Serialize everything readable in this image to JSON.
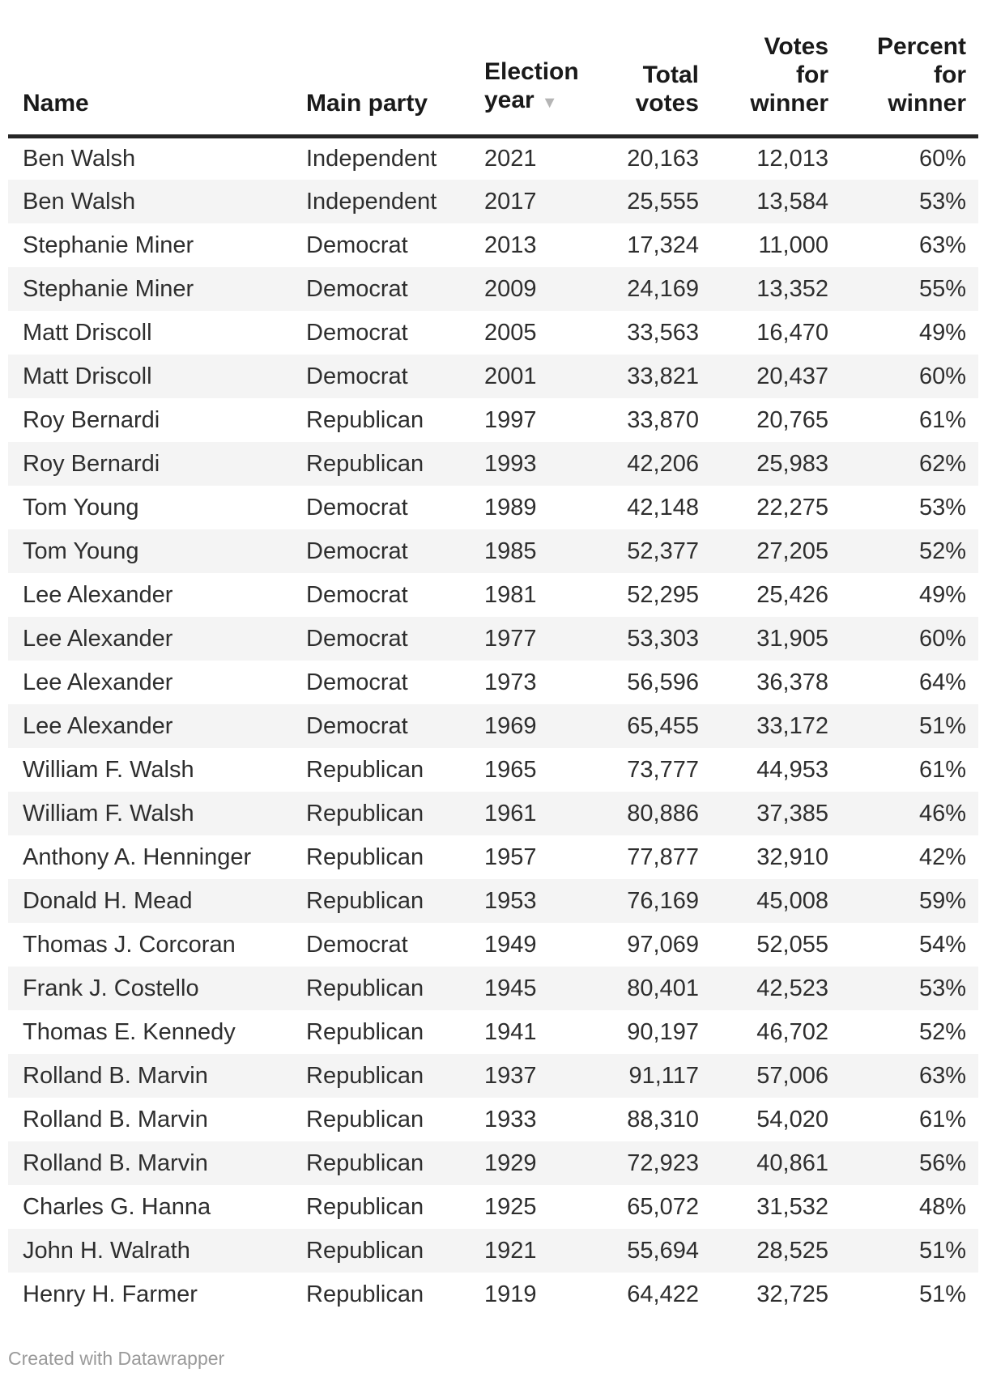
{
  "page": {
    "footer": "Created with Datawrapper"
  },
  "colors": {
    "header_text": "#1a1a1a",
    "body_text": "#2e2e2e",
    "header_rule": "#262626",
    "row_stripe": "#f4f4f4",
    "sort_arrow": "#b5b5b5",
    "footer_text": "#9a9a9a"
  },
  "chart_data": {
    "type": "table",
    "columns": [
      {
        "id": "name",
        "label": "Name",
        "align": "left",
        "sorted": false
      },
      {
        "id": "party",
        "label": "Main party",
        "align": "left",
        "sorted": false
      },
      {
        "id": "year",
        "label": "Election\nyear",
        "align": "left",
        "sorted": true,
        "sort_direction": "descending",
        "sort_icon": "▼"
      },
      {
        "id": "total_votes",
        "label": "Total\nvotes",
        "align": "right",
        "sorted": false
      },
      {
        "id": "votes_for_winner",
        "label": "Votes\nfor\nwinner",
        "align": "right",
        "sorted": false
      },
      {
        "id": "percent_for_winner",
        "label": "Percent\nfor\nwinner",
        "align": "right",
        "sorted": false
      }
    ],
    "rows": [
      {
        "name": "Ben Walsh",
        "party": "Independent",
        "year": "2021",
        "total_votes": "20,163",
        "votes_for_winner": "12,013",
        "percent_for_winner": "60%"
      },
      {
        "name": "Ben Walsh",
        "party": "Independent",
        "year": "2017",
        "total_votes": "25,555",
        "votes_for_winner": "13,584",
        "percent_for_winner": "53%"
      },
      {
        "name": "Stephanie Miner",
        "party": "Democrat",
        "year": "2013",
        "total_votes": "17,324",
        "votes_for_winner": "11,000",
        "percent_for_winner": "63%"
      },
      {
        "name": "Stephanie Miner",
        "party": "Democrat",
        "year": "2009",
        "total_votes": "24,169",
        "votes_for_winner": "13,352",
        "percent_for_winner": "55%"
      },
      {
        "name": "Matt Driscoll",
        "party": "Democrat",
        "year": "2005",
        "total_votes": "33,563",
        "votes_for_winner": "16,470",
        "percent_for_winner": "49%"
      },
      {
        "name": "Matt Driscoll",
        "party": "Democrat",
        "year": "2001",
        "total_votes": "33,821",
        "votes_for_winner": "20,437",
        "percent_for_winner": "60%"
      },
      {
        "name": "Roy Bernardi",
        "party": "Republican",
        "year": "1997",
        "total_votes": "33,870",
        "votes_for_winner": "20,765",
        "percent_for_winner": "61%"
      },
      {
        "name": "Roy Bernardi",
        "party": "Republican",
        "year": "1993",
        "total_votes": "42,206",
        "votes_for_winner": "25,983",
        "percent_for_winner": "62%"
      },
      {
        "name": "Tom Young",
        "party": "Democrat",
        "year": "1989",
        "total_votes": "42,148",
        "votes_for_winner": "22,275",
        "percent_for_winner": "53%"
      },
      {
        "name": "Tom Young",
        "party": "Democrat",
        "year": "1985",
        "total_votes": "52,377",
        "votes_for_winner": "27,205",
        "percent_for_winner": "52%"
      },
      {
        "name": "Lee Alexander",
        "party": "Democrat",
        "year": "1981",
        "total_votes": "52,295",
        "votes_for_winner": "25,426",
        "percent_for_winner": "49%"
      },
      {
        "name": "Lee Alexander",
        "party": "Democrat",
        "year": "1977",
        "total_votes": "53,303",
        "votes_for_winner": "31,905",
        "percent_for_winner": "60%"
      },
      {
        "name": "Lee Alexander",
        "party": "Democrat",
        "year": "1973",
        "total_votes": "56,596",
        "votes_for_winner": "36,378",
        "percent_for_winner": "64%"
      },
      {
        "name": "Lee Alexander",
        "party": "Democrat",
        "year": "1969",
        "total_votes": "65,455",
        "votes_for_winner": "33,172",
        "percent_for_winner": "51%"
      },
      {
        "name": "William F. Walsh",
        "party": "Republican",
        "year": "1965",
        "total_votes": "73,777",
        "votes_for_winner": "44,953",
        "percent_for_winner": "61%"
      },
      {
        "name": "William F. Walsh",
        "party": "Republican",
        "year": "1961",
        "total_votes": "80,886",
        "votes_for_winner": "37,385",
        "percent_for_winner": "46%"
      },
      {
        "name": "Anthony A. Henninger",
        "party": "Republican",
        "year": "1957",
        "total_votes": "77,877",
        "votes_for_winner": "32,910",
        "percent_for_winner": "42%"
      },
      {
        "name": "Donald H. Mead",
        "party": "Republican",
        "year": "1953",
        "total_votes": "76,169",
        "votes_for_winner": "45,008",
        "percent_for_winner": "59%"
      },
      {
        "name": "Thomas J. Corcoran",
        "party": "Democrat",
        "year": "1949",
        "total_votes": "97,069",
        "votes_for_winner": "52,055",
        "percent_for_winner": "54%"
      },
      {
        "name": "Frank J. Costello",
        "party": "Republican",
        "year": "1945",
        "total_votes": "80,401",
        "votes_for_winner": "42,523",
        "percent_for_winner": "53%"
      },
      {
        "name": "Thomas E. Kennedy",
        "party": "Republican",
        "year": "1941",
        "total_votes": "90,197",
        "votes_for_winner": "46,702",
        "percent_for_winner": "52%"
      },
      {
        "name": "Rolland B. Marvin",
        "party": "Republican",
        "year": "1937",
        "total_votes": "91,117",
        "votes_for_winner": "57,006",
        "percent_for_winner": "63%"
      },
      {
        "name": "Rolland B. Marvin",
        "party": "Republican",
        "year": "1933",
        "total_votes": "88,310",
        "votes_for_winner": "54,020",
        "percent_for_winner": "61%"
      },
      {
        "name": "Rolland B. Marvin",
        "party": "Republican",
        "year": "1929",
        "total_votes": "72,923",
        "votes_for_winner": "40,861",
        "percent_for_winner": "56%"
      },
      {
        "name": "Charles G. Hanna",
        "party": "Republican",
        "year": "1925",
        "total_votes": "65,072",
        "votes_for_winner": "31,532",
        "percent_for_winner": "48%"
      },
      {
        "name": "John H. Walrath",
        "party": "Republican",
        "year": "1921",
        "total_votes": "55,694",
        "votes_for_winner": "28,525",
        "percent_for_winner": "51%"
      },
      {
        "name": "Henry H. Farmer",
        "party": "Republican",
        "year": "1919",
        "total_votes": "64,422",
        "votes_for_winner": "32,725",
        "percent_for_winner": "51%"
      }
    ]
  }
}
